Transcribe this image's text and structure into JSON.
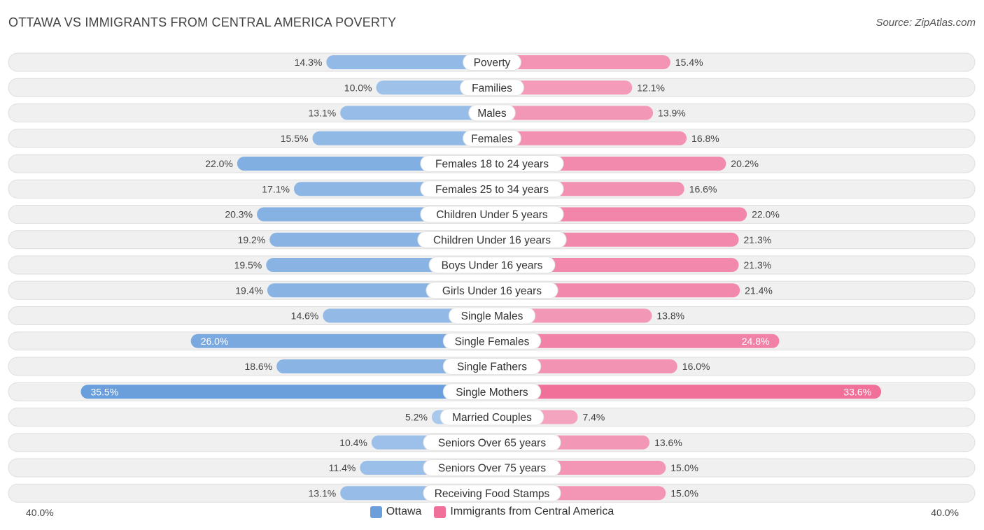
{
  "header": {
    "title": "OTTAWA VS IMMIGRANTS FROM CENTRAL AMERICA POVERTY",
    "source": "Source: ZipAtlas.com"
  },
  "colors": {
    "left_light": "#a8c8ec",
    "left_dark": "#6a9fdb",
    "right_light": "#f5a9c3",
    "right_dark": "#f0709a",
    "row_bg": "#f0f0f0",
    "row_border": "#dedede"
  },
  "chart_data": {
    "type": "bar",
    "orientation": "horizontal-diverging",
    "title": "OTTAWA VS IMMIGRANTS FROM CENTRAL AMERICA POVERTY",
    "xlim": [
      -40,
      40
    ],
    "axis_min_label": "40.0%",
    "axis_max_label": "40.0%",
    "categories": [
      "Poverty",
      "Families",
      "Males",
      "Females",
      "Females 18 to 24 years",
      "Females 25 to 34 years",
      "Children Under 5 years",
      "Children Under 16 years",
      "Boys Under 16 years",
      "Girls Under 16 years",
      "Single Males",
      "Single Females",
      "Single Fathers",
      "Single Mothers",
      "Married Couples",
      "Seniors Over 65 years",
      "Seniors Over 75 years",
      "Receiving Food Stamps"
    ],
    "series": [
      {
        "name": "Ottawa",
        "values": [
          14.3,
          10.0,
          13.1,
          15.5,
          22.0,
          17.1,
          20.3,
          19.2,
          19.5,
          19.4,
          14.6,
          26.0,
          18.6,
          35.5,
          5.2,
          10.4,
          11.4,
          13.1
        ],
        "labels": [
          "14.3%",
          "10.0%",
          "13.1%",
          "15.5%",
          "22.0%",
          "17.1%",
          "20.3%",
          "19.2%",
          "19.5%",
          "19.4%",
          "14.6%",
          "26.0%",
          "18.6%",
          "35.5%",
          "5.2%",
          "10.4%",
          "11.4%",
          "13.1%"
        ]
      },
      {
        "name": "Immigrants from Central America",
        "values": [
          15.4,
          12.1,
          13.9,
          16.8,
          20.2,
          16.6,
          22.0,
          21.3,
          21.3,
          21.4,
          13.8,
          24.8,
          16.0,
          33.6,
          7.4,
          13.6,
          15.0,
          15.0
        ],
        "labels": [
          "15.4%",
          "12.1%",
          "13.9%",
          "16.8%",
          "20.2%",
          "16.6%",
          "22.0%",
          "21.3%",
          "21.3%",
          "21.4%",
          "13.8%",
          "24.8%",
          "16.0%",
          "33.6%",
          "7.4%",
          "13.6%",
          "15.0%",
          "15.0%"
        ]
      }
    ],
    "legend": [
      "Ottawa",
      "Immigrants from Central America"
    ],
    "legend_position": "bottom-center"
  }
}
